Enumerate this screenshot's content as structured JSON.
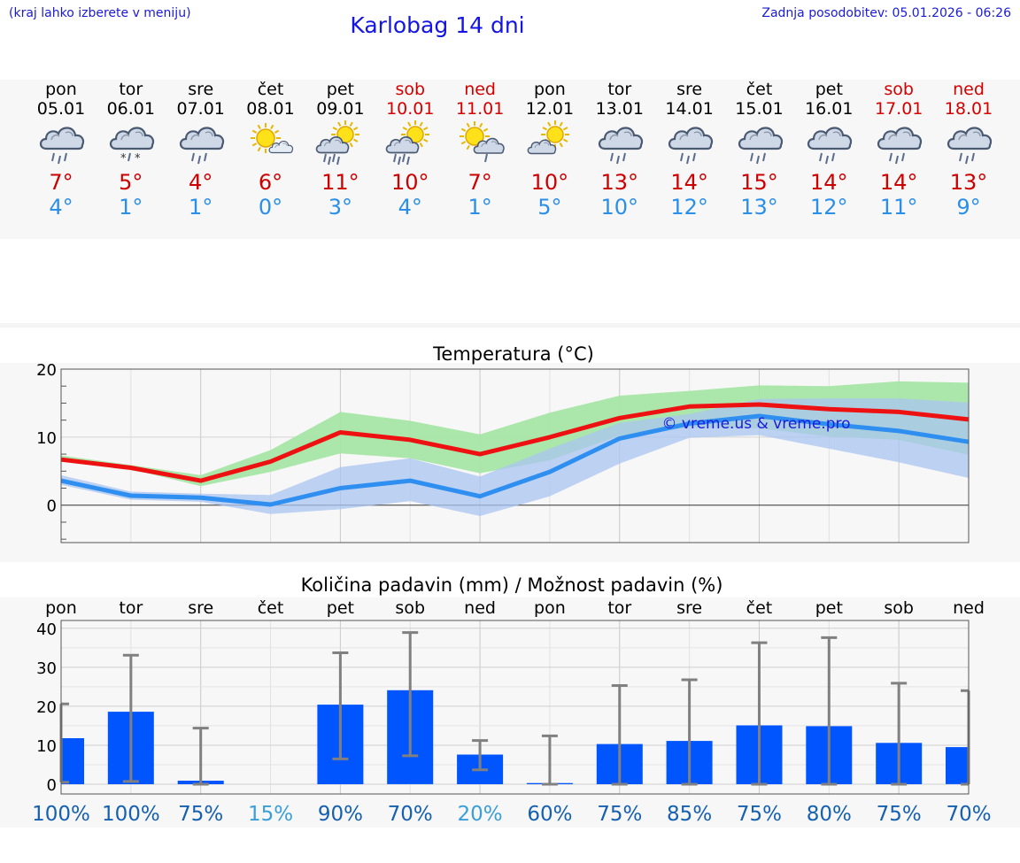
{
  "header": {
    "hint": "(kraj lahko izberete v meniju)",
    "title": "Karlobag 14 dni",
    "updated": "Zadnja posodobitev: 05.01.2026 - 06:26"
  },
  "days": [
    {
      "name": "pon",
      "date": "05.01",
      "weekend": false,
      "icon": "rain-cloud-icon",
      "max": "7°",
      "min": "4°"
    },
    {
      "name": "tor",
      "date": "06.01",
      "weekend": false,
      "icon": "sleet-cloud-icon",
      "max": "5°",
      "min": "1°"
    },
    {
      "name": "sre",
      "date": "07.01",
      "weekend": false,
      "icon": "rain-cloud-icon",
      "max": "4°",
      "min": "1°"
    },
    {
      "name": "čet",
      "date": "08.01",
      "weekend": false,
      "icon": "sun-small-cloud-icon",
      "max": "6°",
      "min": "0°"
    },
    {
      "name": "pet",
      "date": "09.01",
      "weekend": false,
      "icon": "sun-rain-cloud-icon",
      "max": "11°",
      "min": "3°"
    },
    {
      "name": "sob",
      "date": "10.01",
      "weekend": true,
      "icon": "sun-rain-cloud-icon",
      "max": "10°",
      "min": "4°"
    },
    {
      "name": "ned",
      "date": "11.01",
      "weekend": true,
      "icon": "sun-light-rain-icon",
      "max": "7°",
      "min": "1°"
    },
    {
      "name": "pon",
      "date": "12.01",
      "weekend": false,
      "icon": "sun-cloud-icon",
      "max": "10°",
      "min": "5°"
    },
    {
      "name": "tor",
      "date": "13.01",
      "weekend": false,
      "icon": "rain-cloud-icon",
      "max": "13°",
      "min": "10°"
    },
    {
      "name": "sre",
      "date": "14.01",
      "weekend": false,
      "icon": "rain-cloud-icon",
      "max": "14°",
      "min": "12°"
    },
    {
      "name": "čet",
      "date": "15.01",
      "weekend": false,
      "icon": "rain-cloud-icon",
      "max": "15°",
      "min": "13°"
    },
    {
      "name": "pet",
      "date": "16.01",
      "weekend": false,
      "icon": "rain-cloud-icon",
      "max": "14°",
      "min": "12°"
    },
    {
      "name": "sob",
      "date": "17.01",
      "weekend": true,
      "icon": "rain-cloud-icon",
      "max": "14°",
      "min": "11°"
    },
    {
      "name": "ned",
      "date": "18.01",
      "weekend": true,
      "icon": "rain-cloud-icon",
      "max": "13°",
      "min": "9°"
    }
  ],
  "colors": {
    "max_line": "#ee1111",
    "min_line": "#2f8ff0",
    "max_band": "#a6e6a6",
    "min_band": "#a9c4f2",
    "bar": "#0055ff",
    "whisker": "#808080",
    "weekend": "#d40000"
  },
  "chart_data": [
    {
      "type": "line",
      "title": "Temperatura (°C)",
      "watermark": "© vreme.us & vreme.pro",
      "ylim": [
        -5.5,
        20
      ],
      "y_ticks": [
        "20",
        "10",
        "0"
      ],
      "x": [
        0,
        1,
        2,
        3,
        4,
        5,
        6,
        7,
        8,
        9,
        10,
        11,
        12,
        13
      ],
      "series": [
        {
          "name": "max",
          "values": [
            6.7,
            5.5,
            3.6,
            6.4,
            10.7,
            9.6,
            7.5,
            10.0,
            12.8,
            14.5,
            14.8,
            14.1,
            13.7,
            12.6
          ],
          "band_low": [
            6.6,
            5.3,
            2.8,
            4.9,
            7.6,
            6.9,
            4.7,
            6.6,
            10.2,
            11.4,
            11.3,
            10.1,
            9.6,
            7.4
          ],
          "band_high": [
            7.3,
            5.9,
            4.4,
            8.1,
            13.7,
            12.4,
            10.4,
            13.6,
            16.1,
            16.8,
            17.6,
            17.5,
            18.2,
            18.0
          ]
        },
        {
          "name": "min",
          "values": [
            3.6,
            1.4,
            1.1,
            0.1,
            2.5,
            3.6,
            1.3,
            4.9,
            9.8,
            12.0,
            13.1,
            11.9,
            10.9,
            9.3
          ],
          "band_low": [
            3.0,
            0.8,
            0.5,
            -1.3,
            -0.6,
            0.6,
            -1.6,
            1.3,
            6.1,
            9.9,
            10.3,
            8.3,
            6.3,
            4.0
          ],
          "band_high": [
            4.4,
            2.0,
            1.7,
            1.5,
            5.6,
            6.9,
            4.2,
            8.3,
            12.1,
            13.4,
            15.6,
            15.7,
            15.7,
            15.1
          ]
        }
      ]
    },
    {
      "type": "bar",
      "title": "Količina padavin (mm) / Možnost padavin (%)",
      "ylim": [
        -2.5,
        42
      ],
      "y_ticks": [
        "40",
        "30",
        "20",
        "10",
        "0"
      ],
      "categories": [
        "pon",
        "tor",
        "sre",
        "čet",
        "pet",
        "sob",
        "ned",
        "pon",
        "tor",
        "sre",
        "čet",
        "pet",
        "sob",
        "ned"
      ],
      "values": [
        11.8,
        18.6,
        0.9,
        0,
        20.4,
        24.1,
        7.6,
        0.3,
        10.3,
        11.1,
        15.1,
        14.9,
        10.6,
        9.5
      ],
      "err_low": [
        0.5,
        0.7,
        0,
        0,
        6.5,
        7.3,
        3.7,
        0,
        0,
        0,
        0,
        0,
        0,
        0
      ],
      "err_high": [
        20.6,
        33.1,
        14.4,
        0,
        33.7,
        38.9,
        11.2,
        12.4,
        25.3,
        26.8,
        36.3,
        37.6,
        25.9,
        24.0
      ],
      "probability": [
        "100%",
        "100%",
        "75%",
        "15%",
        "90%",
        "70%",
        "20%",
        "60%",
        "75%",
        "85%",
        "75%",
        "80%",
        "75%",
        "70%"
      ],
      "probability_light": [
        false,
        false,
        false,
        true,
        false,
        false,
        true,
        false,
        false,
        false,
        false,
        false,
        false,
        false
      ]
    }
  ]
}
